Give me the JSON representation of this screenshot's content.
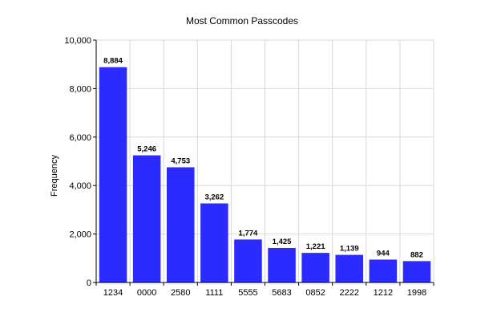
{
  "chart_data": {
    "type": "bar",
    "title": "Most Common Passcodes",
    "xlabel": "",
    "ylabel": "Frequency",
    "categories": [
      "1234",
      "0000",
      "2580",
      "1111",
      "5555",
      "5683",
      "0852",
      "2222",
      "1212",
      "1998"
    ],
    "values": [
      8884,
      5246,
      4753,
      3262,
      1774,
      1425,
      1221,
      1139,
      944,
      882
    ],
    "value_labels": [
      "8,884",
      "5,246",
      "4,753",
      "3,262",
      "1,774",
      "1,425",
      "1,221",
      "1,139",
      "944",
      "882"
    ],
    "ylim": [
      0,
      10000
    ],
    "yticks": [
      0,
      2000,
      4000,
      6000,
      8000,
      10000
    ],
    "ytick_labels": [
      "0",
      "2,000",
      "4,000",
      "6,000",
      "8,000",
      "10,000"
    ],
    "grid": true,
    "bar_color": "#2b2bff",
    "grid_color": "#d9d9d9"
  }
}
